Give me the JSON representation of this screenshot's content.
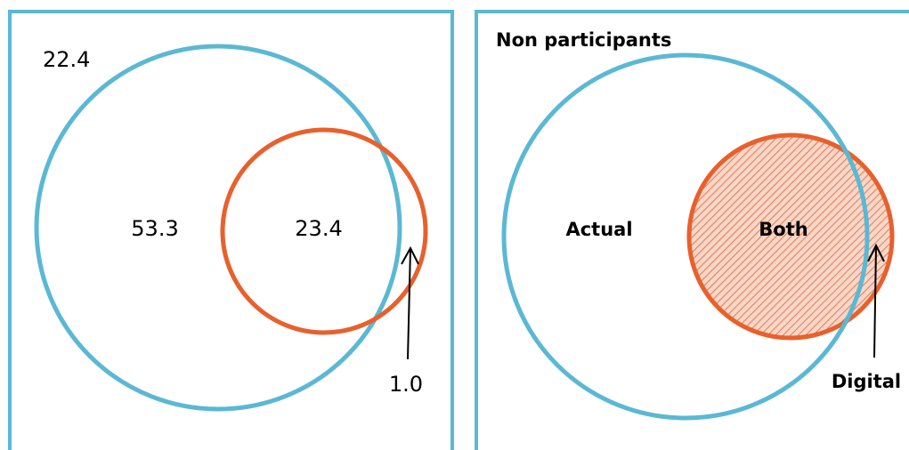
{
  "left_panel": {
    "outside_value": "22.4",
    "actual_only_value": "53.3",
    "both_value": "23.4",
    "digital_only_value": "1.0"
  },
  "right_panel": {
    "outside_label": "Non participants",
    "actual_label": "Actual",
    "both_label": "Both",
    "digital_label": "Digital"
  },
  "colors": {
    "frame": "#5bb8d4",
    "actual_circle": "#5bb8d4",
    "digital_circle": "#e8602c",
    "hatch": "#e8602c"
  }
}
